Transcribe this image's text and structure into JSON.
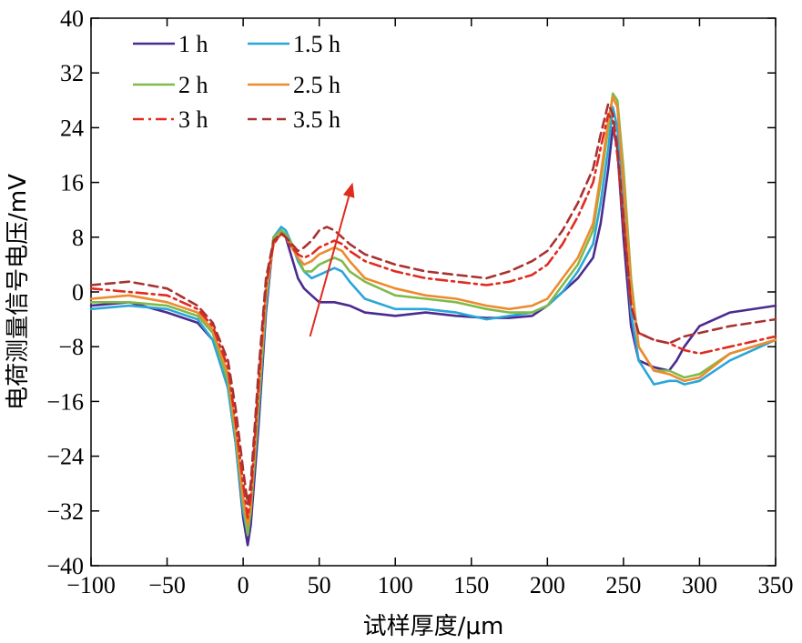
{
  "chart_data": {
    "type": "line",
    "title": "",
    "xlabel": "试样厚度/μm",
    "ylabel": "电荷测量信号电压/mV",
    "xlim": [
      -100,
      350
    ],
    "ylim": [
      -40,
      40
    ],
    "xticks": [
      -100,
      -50,
      0,
      50,
      100,
      150,
      200,
      250,
      300,
      350
    ],
    "yticks": [
      -40,
      -32,
      -24,
      -16,
      -8,
      0,
      8,
      16,
      24,
      32,
      40
    ],
    "grid": false,
    "legend_position": "top-left",
    "annotation": {
      "type": "arrow",
      "from": [
        44,
        -6.5
      ],
      "to": [
        72,
        16
      ],
      "color": "#e02b20"
    },
    "series": [
      {
        "name": "1 h",
        "color": "#4b2b8f",
        "dash": "solid",
        "x": [
          -100,
          -75,
          -50,
          -30,
          -20,
          -10,
          -5,
          0,
          3,
          5,
          10,
          15,
          20,
          25,
          28,
          32,
          36,
          40,
          45,
          50,
          55,
          60,
          70,
          80,
          100,
          120,
          140,
          160,
          175,
          190,
          200,
          210,
          220,
          230,
          235,
          240,
          243,
          246,
          250,
          255,
          260,
          270,
          280,
          285,
          290,
          300,
          320,
          350
        ],
        "y": [
          -2,
          -1.5,
          -3,
          -4.5,
          -7,
          -14,
          -22,
          -33,
          -37,
          -34,
          -20,
          -3,
          8,
          9,
          8,
          5,
          2,
          0.5,
          -0.5,
          -1.5,
          -1.5,
          -1.5,
          -2,
          -3,
          -3.5,
          -3,
          -3.5,
          -3.8,
          -3.8,
          -3.5,
          -2,
          0,
          2,
          5,
          10,
          18,
          24,
          21,
          8,
          -5,
          -10,
          -11,
          -11.5,
          -10,
          -8,
          -5,
          -3,
          -2
        ]
      },
      {
        "name": "1.5 h",
        "color": "#2aa6d8",
        "dash": "solid",
        "x": [
          -100,
          -75,
          -50,
          -30,
          -20,
          -10,
          -5,
          0,
          3,
          5,
          10,
          15,
          20,
          25,
          28,
          32,
          36,
          40,
          45,
          50,
          55,
          60,
          65,
          70,
          80,
          100,
          120,
          140,
          160,
          175,
          190,
          200,
          210,
          220,
          230,
          235,
          240,
          243,
          246,
          250,
          255,
          260,
          270,
          280,
          285,
          290,
          300,
          320,
          350
        ],
        "y": [
          -2.5,
          -2,
          -2.5,
          -4,
          -7,
          -14,
          -22,
          -32,
          -35.5,
          -32,
          -18,
          -2,
          8,
          9.5,
          9,
          7,
          4.5,
          3,
          2,
          2.5,
          3,
          3.5,
          3,
          1.5,
          -1,
          -2.5,
          -2.5,
          -3,
          -4,
          -3.5,
          -3,
          -2,
          0,
          3,
          7,
          13,
          21,
          27,
          24,
          12,
          -3,
          -10,
          -13.5,
          -13,
          -13,
          -13.5,
          -13,
          -10,
          -7
        ]
      },
      {
        "name": "2 h",
        "color": "#7fba4a",
        "dash": "solid",
        "x": [
          -100,
          -75,
          -50,
          -30,
          -20,
          -10,
          -5,
          0,
          3,
          5,
          10,
          15,
          20,
          25,
          28,
          32,
          36,
          40,
          45,
          50,
          55,
          60,
          65,
          70,
          80,
          100,
          120,
          140,
          160,
          175,
          190,
          200,
          210,
          220,
          230,
          235,
          240,
          243,
          246,
          250,
          255,
          260,
          270,
          280,
          285,
          290,
          300,
          320,
          350
        ],
        "y": [
          -1.5,
          -1.5,
          -2,
          -3.5,
          -6,
          -13,
          -21,
          -31,
          -35.5,
          -32,
          -17,
          -1,
          8,
          9,
          8.5,
          7,
          5,
          3,
          3,
          4,
          4.5,
          5,
          4.5,
          3,
          1.5,
          -0.5,
          -1,
          -1.5,
          -2.5,
          -3,
          -3,
          -2,
          1,
          4,
          9,
          16,
          24,
          29,
          28,
          18,
          2,
          -8,
          -11.5,
          -11.5,
          -12,
          -12.5,
          -12,
          -9,
          -7
        ]
      },
      {
        "name": "2.5 h",
        "color": "#ee8a2e",
        "dash": "solid",
        "x": [
          -100,
          -75,
          -50,
          -30,
          -20,
          -10,
          -5,
          0,
          3,
          5,
          10,
          15,
          20,
          25,
          28,
          32,
          36,
          40,
          45,
          50,
          55,
          60,
          65,
          70,
          80,
          100,
          120,
          140,
          160,
          175,
          190,
          200,
          210,
          220,
          230,
          235,
          240,
          243,
          246,
          250,
          255,
          260,
          270,
          280,
          285,
          290,
          300,
          320,
          350
        ],
        "y": [
          -1,
          -0.5,
          -1.5,
          -3,
          -5.5,
          -12,
          -20,
          -30,
          -34,
          -31,
          -15,
          0,
          7,
          8.5,
          8,
          6.5,
          5,
          4,
          4.5,
          5.5,
          6,
          6.5,
          6,
          4.5,
          2,
          0.5,
          -0.5,
          -1,
          -2,
          -2.5,
          -2,
          -1,
          2,
          5,
          10,
          17,
          25,
          28.5,
          27,
          16,
          1,
          -8,
          -11.5,
          -12,
          -12.5,
          -13,
          -12.5,
          -9,
          -7
        ]
      },
      {
        "name": "3 h",
        "color": "#e02b20",
        "dash": "dashdot",
        "x": [
          -100,
          -75,
          -50,
          -30,
          -20,
          -10,
          -5,
          0,
          3,
          5,
          10,
          15,
          20,
          25,
          28,
          32,
          36,
          40,
          45,
          50,
          55,
          60,
          65,
          70,
          80,
          100,
          120,
          140,
          160,
          175,
          190,
          200,
          210,
          220,
          230,
          235,
          240,
          243,
          246,
          250,
          255,
          260,
          270,
          280,
          285,
          290,
          300,
          320,
          350
        ],
        "y": [
          0.5,
          0,
          -0.5,
          -2.5,
          -5,
          -11,
          -19,
          -28,
          -33,
          -30,
          -14,
          1,
          7,
          8.5,
          8,
          6.5,
          5.5,
          5,
          5.5,
          6.5,
          7,
          7.5,
          7,
          6,
          4.5,
          3,
          2,
          1.5,
          1,
          1.5,
          2.5,
          4,
          7,
          11,
          16,
          21,
          26,
          25,
          20,
          10,
          -2,
          -6,
          -7,
          -7.5,
          -8,
          -8.5,
          -9,
          -8,
          -6.5
        ]
      },
      {
        "name": "3.5 h",
        "color": "#a83232",
        "dash": "dashed",
        "x": [
          -100,
          -75,
          -50,
          -30,
          -20,
          -10,
          -5,
          0,
          3,
          5,
          10,
          15,
          20,
          25,
          28,
          32,
          36,
          40,
          45,
          50,
          55,
          60,
          65,
          70,
          80,
          100,
          120,
          140,
          160,
          175,
          190,
          200,
          210,
          220,
          230,
          235,
          240,
          243,
          246,
          250,
          255,
          260,
          270,
          280,
          285,
          290,
          300,
          320,
          350
        ],
        "y": [
          1,
          1.5,
          0.5,
          -2,
          -4.5,
          -10,
          -17,
          -26,
          -31,
          -28,
          -12,
          2,
          7.5,
          8.5,
          8,
          7,
          6,
          6.5,
          7.5,
          9,
          9.5,
          9,
          8,
          7,
          5.5,
          4,
          3,
          2.5,
          2,
          3,
          4.5,
          6,
          9,
          13,
          18,
          23,
          27.5,
          26,
          21,
          11,
          -2,
          -6,
          -7,
          -7.5,
          -7,
          -6.5,
          -6,
          -5,
          -4
        ]
      }
    ]
  }
}
